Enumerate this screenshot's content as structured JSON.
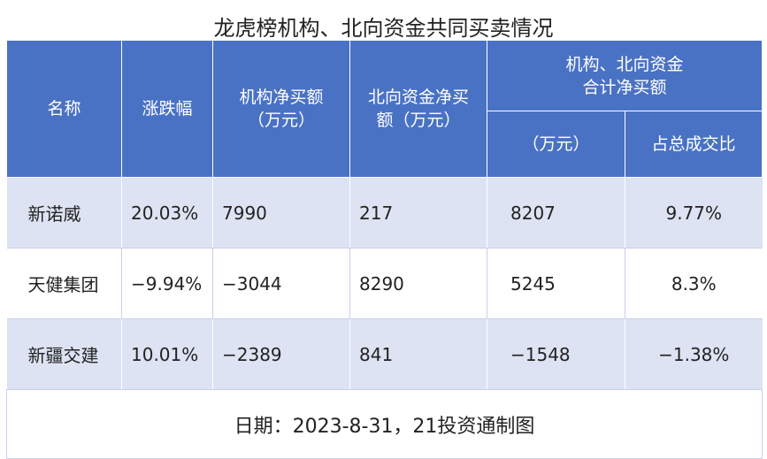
{
  "header": {
    "title": "龙虎榜机构、北向资金共同买卖情况"
  },
  "table": {
    "group_header": "机构、北向资金\n合计净买额",
    "columns": [
      "名称",
      "涨跌幅",
      "机构净买额\n（万元）",
      "北向资金净买\n额（万元）",
      "（万元）",
      "占总成交比"
    ],
    "rows": [
      [
        "新诺威",
        "20.03%",
        "7990",
        "217",
        "8207",
        "9.77%"
      ],
      [
        "天健集团",
        "−9.94%",
        "−3044",
        "8290",
        "5245",
        "8.3%"
      ],
      [
        "新疆交建",
        "10.01%",
        "−2389",
        "841",
        "−1548",
        "−1.38%"
      ]
    ]
  },
  "footer": {
    "text": "日期：2023-8-31，21投资通制图"
  }
}
